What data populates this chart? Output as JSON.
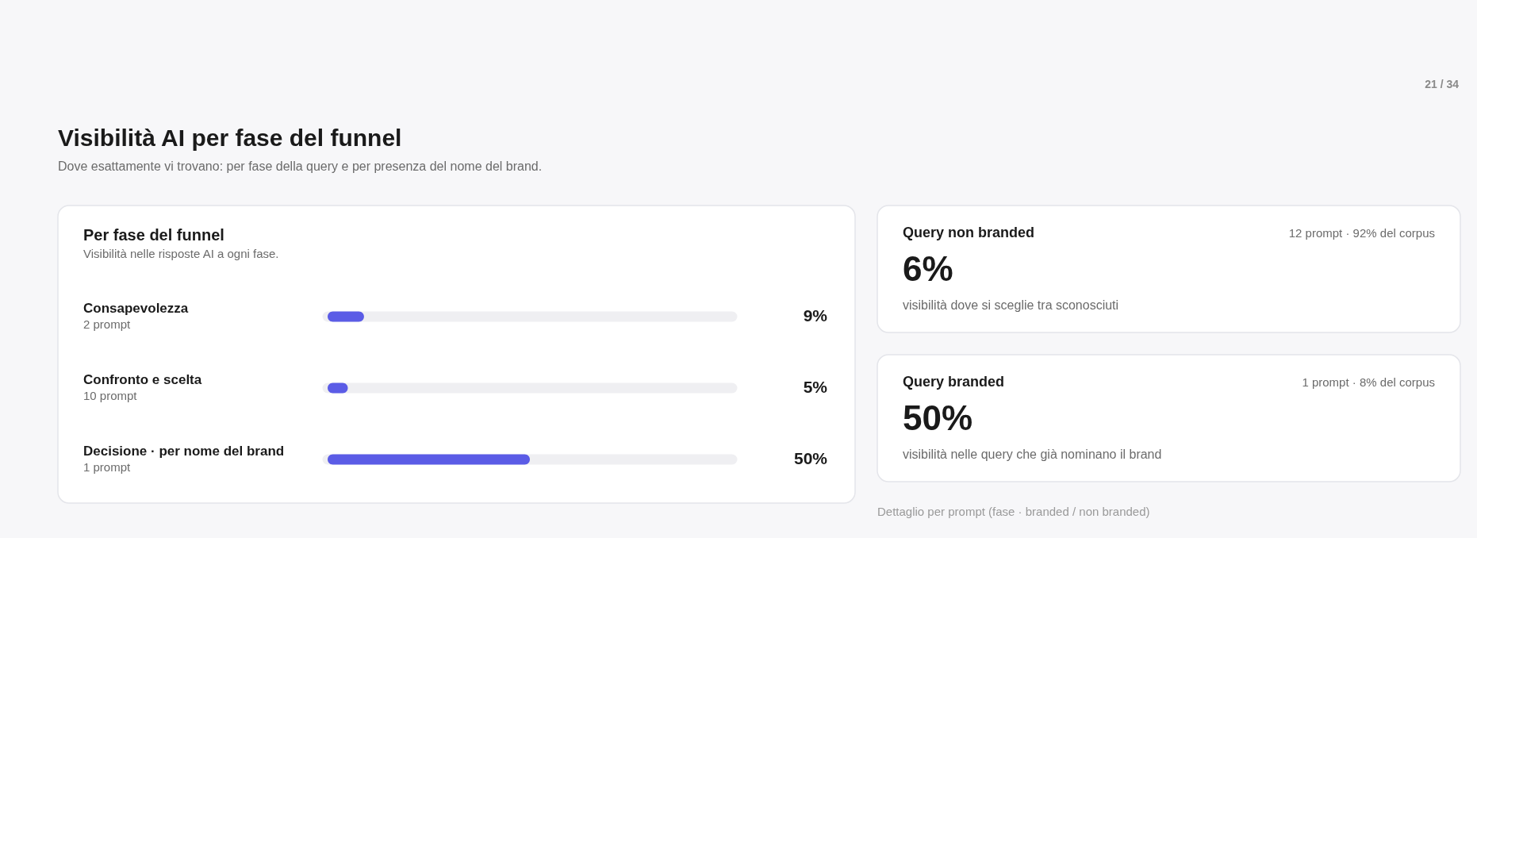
{
  "chart_data": [
    {
      "type": "other",
      "title": "Visibilità AI per fase del funnel",
      "subtitle": "Dove esattamente vi trovano: per fase della query e per presenza del nome del brand.",
      "annotations": [
        "21 / 34"
      ]
    },
    {
      "type": "bar",
      "orientation": "horizontal",
      "title": "Per fase del funnel",
      "subtitle": "Visibilità nelle risposte AI a ogni fase.",
      "categories": [
        "Consapevolezza",
        "Confronto e scelta",
        "Decisione · per nome del brand"
      ],
      "values": [
        9,
        5,
        50
      ],
      "value_labels": [
        "9%",
        "5%",
        "50%"
      ],
      "color": "#5b5ce6",
      "xlim": [
        0,
        100
      ],
      "annotations": [
        "2 prompt",
        "10 prompt",
        "1 prompt"
      ]
    },
    {
      "type": "other",
      "title": "Query non branded",
      "annotations": [
        "12 prompt · 92% del corpus",
        "6%",
        "visibilità dove si sceglie tra sconosciuti"
      ]
    },
    {
      "type": "other",
      "title": "Query branded",
      "annotations": [
        "1 prompt · 8% del corpus",
        "50%",
        "visibilità nelle query che già nominano il brand"
      ]
    },
    {
      "type": "other",
      "annotations": [
        "Dettaglio per prompt (fase · branded / non branded)"
      ]
    }
  ]
}
